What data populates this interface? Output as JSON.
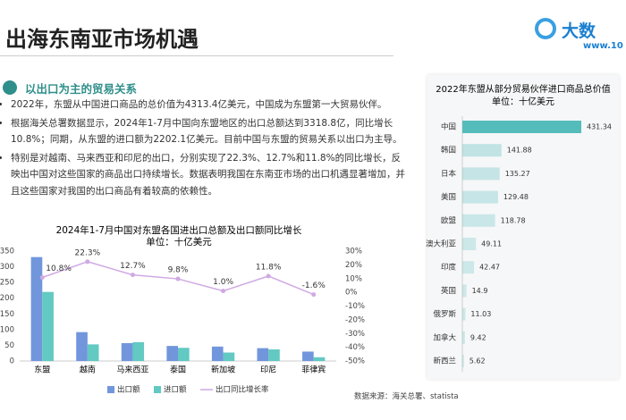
{
  "header": {
    "title": "出海东南亚市场机遇",
    "logo_text": "大数",
    "logo_url": "www.10"
  },
  "section": {
    "title": "以出口为主的贸易关系",
    "bullets": [
      "2022年，东盟从中国进口商品的总价值为4313.4亿美元，中国成为东盟第一大贸易伙伴。",
      "根据海关总署数据显示，2024年1-7月中国向东盟地区的出口总额达到3318.8亿，同比增长10.8%；同期，从东盟的进口额为2202.1亿美元。目前中国与东盟的贸易关系以出口为主导。",
      "特别是对越南、马来西亚和印尼的出口，分别实现了22.3%、12.7%和11.8%的同比增长，反映出中国对这些国家的商品出口持续增长。数据表明我国在东南亚市场的出口机遇显著增加，并且这些国家对我国的出口商品有着较高的依赖性。"
    ]
  },
  "chart_data": [
    {
      "type": "bar",
      "title": "2024年1-7月中国对东盟各国进出口总额及出口额同比增长",
      "subtitle": "单位：十亿美元",
      "categories": [
        "东盟",
        "越南",
        "马来西亚",
        "泰国",
        "新加坡",
        "印尼",
        "菲律宾"
      ],
      "series": [
        {
          "name": "出口额",
          "color": "#7196dc",
          "values": [
            331,
            92,
            57,
            48,
            46,
            41,
            30
          ]
        },
        {
          "name": "进口额",
          "color": "#62c9c3",
          "values": [
            220,
            53,
            60,
            42,
            27,
            37,
            12
          ]
        },
        {
          "name": "出口同比增长率",
          "color": "#cfa9e3",
          "type": "line",
          "axis": "y2",
          "values": [
            10.8,
            22.3,
            12.7,
            9.8,
            1.0,
            11.8,
            -1.6
          ],
          "value_labels": [
            "10.8%",
            "22.3%",
            "12.7%",
            "9.8%",
            "1.0%",
            "11.8%",
            "-1.6%"
          ]
        }
      ],
      "ylim": [
        0,
        350
      ],
      "yticks": [
        0,
        50,
        100,
        150,
        200,
        250,
        300,
        350
      ],
      "y2lim": [
        -50,
        30
      ],
      "y2ticks": [
        {
          "value": -50,
          "label": "-50%"
        },
        {
          "value": -40,
          "label": "-40%"
        },
        {
          "value": -30,
          "label": "-30%"
        },
        {
          "value": -20,
          "label": "-20%"
        },
        {
          "value": -10,
          "label": "-10%"
        },
        {
          "value": 0,
          "label": "0%"
        },
        {
          "value": 10,
          "label": "10%"
        },
        {
          "value": 20,
          "label": "20%"
        },
        {
          "value": 30,
          "label": "30%"
        }
      ],
      "grid": false,
      "legend": "bottom"
    },
    {
      "type": "hbar",
      "title": "2022年东盟从部分贸易伙伴进口商品总价值",
      "subtitle": "单位：十亿美元",
      "categories": [
        "中国",
        "韩国",
        "日本",
        "美国",
        "欧盟",
        "澳大利亚",
        "印度",
        "英国",
        "俄罗斯",
        "加拿大",
        "新西兰"
      ],
      "values": [
        431.34,
        141.88,
        135.27,
        129.48,
        118.78,
        49.11,
        42.47,
        14.9,
        11.03,
        9.42,
        5.62
      ],
      "color": "#55bcbc"
    }
  ],
  "source": "数据来源：海关总署、statista"
}
